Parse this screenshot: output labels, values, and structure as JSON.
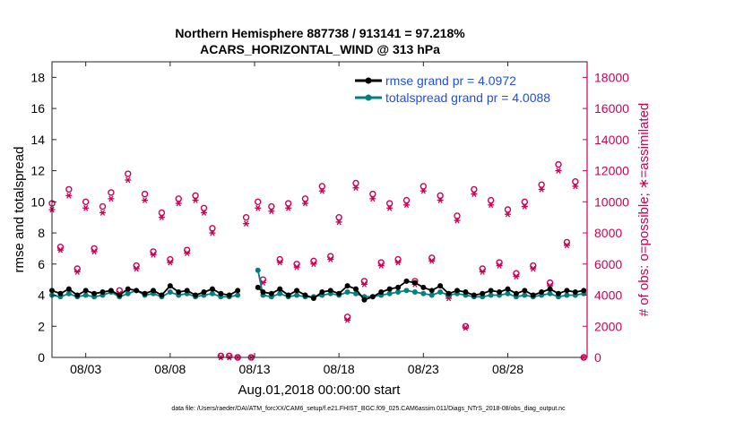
{
  "chart_data": {
    "type": "line",
    "title_line1": "Northern Hemisphere 887738 / 913141 = 97.218%",
    "title_line2": "ACARS_HORIZONTAL_WIND @ 313 hPa",
    "xlabel": "Aug.01,2018 00:00:00 start",
    "ylabel_left": "rmse and totalspread",
    "ylabel_right": "# of obs: o=possible; ∗=assimilated",
    "xlim": [
      1,
      32.7
    ],
    "ylim_left": [
      0,
      19
    ],
    "ylim_right": [
      0,
      19000
    ],
    "x_ticks": [
      3,
      8,
      13,
      18,
      23,
      28
    ],
    "x_tick_labels": [
      "08/03",
      "08/08",
      "08/13",
      "08/18",
      "08/23",
      "08/28"
    ],
    "y_ticks_left": [
      0,
      2,
      4,
      6,
      8,
      10,
      12,
      14,
      16,
      18
    ],
    "y_ticks_right": [
      0,
      2000,
      4000,
      6000,
      8000,
      10000,
      12000,
      14000,
      16000,
      18000
    ],
    "footnote": "data file: /Users/raeder/DAI/ATM_forcXX/CAM6_setup/f.e21.FHIST_BGC.f09_025.CAM6assim.011/Diags_NTrS_2018-08/obs_diag_output.nc",
    "colors": {
      "rmse": "#000000",
      "spread": "#008080",
      "obs": "#cc0055",
      "legend_text": "#1f4fe0"
    },
    "series": [
      {
        "name": "rmse grand pr = 4.0972",
        "x": [
          1.0,
          1.5,
          2.0,
          2.5,
          3.0,
          3.5,
          4.0,
          4.5,
          5.0,
          5.5,
          6.0,
          6.5,
          7.0,
          7.5,
          8.0,
          8.5,
          9.0,
          9.5,
          10.0,
          10.5,
          11.0,
          11.5,
          12.0,
          12.5,
          12.8,
          13.2,
          13.5,
          14.0,
          14.5,
          15.0,
          15.5,
          16.0,
          16.5,
          17.0,
          17.5,
          18.0,
          18.5,
          19.0,
          19.5,
          20.0,
          20.5,
          21.0,
          21.5,
          22.0,
          22.5,
          23.0,
          23.5,
          24.0,
          24.5,
          25.0,
          25.5,
          26.0,
          26.5,
          27.0,
          27.5,
          28.0,
          28.5,
          29.0,
          29.5,
          30.0,
          30.5,
          31.0,
          31.5,
          32.0,
          32.5
        ],
        "y": [
          4.3,
          4.1,
          4.4,
          4.0,
          4.3,
          4.1,
          4.2,
          4.3,
          4.0,
          4.4,
          4.3,
          4.1,
          4.3,
          4.0,
          4.6,
          4.2,
          4.3,
          4.0,
          4.2,
          4.4,
          4.1,
          4.0,
          4.3,
          null,
          null,
          4.5,
          4.2,
          4.1,
          4.4,
          4.0,
          4.3,
          4.0,
          3.8,
          4.2,
          4.3,
          4.1,
          4.6,
          4.4,
          3.7,
          3.9,
          4.2,
          4.4,
          4.5,
          4.9,
          4.8,
          4.5,
          4.3,
          4.6,
          4.1,
          4.3,
          4.2,
          4.0,
          4.1,
          4.3,
          4.2,
          4.4,
          4.1,
          4.3,
          4.0,
          4.2,
          4.4,
          4.1,
          4.3,
          4.2,
          4.3
        ]
      },
      {
        "name": "totalspread grand pr = 4.0088",
        "x": [
          1.0,
          1.5,
          2.0,
          2.5,
          3.0,
          3.5,
          4.0,
          4.5,
          5.0,
          5.5,
          6.0,
          6.5,
          7.0,
          7.5,
          8.0,
          8.5,
          9.0,
          9.5,
          10.0,
          10.5,
          11.0,
          11.5,
          12.0,
          12.5,
          12.8,
          13.2,
          13.5,
          14.0,
          14.5,
          15.0,
          15.5,
          16.0,
          16.5,
          17.0,
          17.5,
          18.0,
          18.5,
          19.0,
          19.5,
          20.0,
          20.5,
          21.0,
          21.5,
          22.0,
          22.5,
          23.0,
          23.5,
          24.0,
          24.5,
          25.0,
          25.5,
          26.0,
          26.5,
          27.0,
          27.5,
          28.0,
          28.5,
          29.0,
          29.5,
          30.0,
          30.5,
          31.0,
          31.5,
          32.0,
          32.5
        ],
        "y": [
          4.0,
          3.9,
          4.1,
          3.9,
          4.0,
          3.9,
          4.0,
          4.2,
          3.9,
          4.1,
          4.3,
          4.0,
          4.1,
          3.9,
          4.2,
          4.0,
          4.1,
          3.9,
          4.0,
          4.1,
          3.9,
          3.9,
          4.0,
          null,
          null,
          5.6,
          4.0,
          3.9,
          4.1,
          3.9,
          4.0,
          3.9,
          3.9,
          4.0,
          4.1,
          4.0,
          4.2,
          4.1,
          3.9,
          3.9,
          4.0,
          4.1,
          4.2,
          4.3,
          4.2,
          4.1,
          4.0,
          4.2,
          4.0,
          4.1,
          4.0,
          3.9,
          3.9,
          4.0,
          4.0,
          4.1,
          3.9,
          4.0,
          3.9,
          4.0,
          4.1,
          3.9,
          4.0,
          4.0,
          4.1
        ]
      }
    ],
    "obs_possible": {
      "x": [
        1.0,
        1.5,
        2.0,
        2.5,
        3.0,
        3.5,
        4.0,
        4.5,
        5.0,
        5.5,
        6.0,
        6.5,
        7.0,
        7.5,
        8.0,
        8.5,
        9.0,
        9.5,
        10.0,
        10.5,
        11.0,
        11.5,
        12.0,
        12.5,
        12.8,
        13.2,
        13.5,
        14.0,
        14.5,
        15.0,
        15.5,
        16.0,
        16.5,
        17.0,
        17.5,
        18.0,
        18.5,
        19.0,
        19.5,
        20.0,
        20.5,
        21.0,
        21.5,
        22.0,
        22.5,
        23.0,
        23.5,
        24.0,
        24.5,
        25.0,
        25.5,
        26.0,
        26.5,
        27.0,
        27.5,
        28.0,
        28.5,
        29.0,
        29.5,
        30.0,
        30.5,
        31.0,
        31.5,
        32.0,
        32.5
      ],
      "y": [
        9900,
        7100,
        10800,
        5700,
        10000,
        7000,
        9700,
        10600,
        4300,
        11800,
        5900,
        10500,
        6800,
        9300,
        6300,
        10200,
        6900,
        10400,
        9600,
        8300,
        100,
        100,
        0,
        9000,
        0,
        10000,
        5000,
        9700,
        6300,
        9900,
        6000,
        10200,
        6200,
        11000,
        6500,
        9000,
        2600,
        11200,
        4900,
        10500,
        6100,
        9900,
        6300,
        10100,
        4900,
        11000,
        6400,
        10400,
        4000,
        9100,
        2000,
        10800,
        5700,
        10100,
        6100,
        9500,
        5400,
        10000,
        5900,
        11100,
        4800,
        12400,
        7400,
        11300,
        0
      ]
    },
    "obs_assimilated": {
      "x": [
        1.0,
        1.5,
        2.0,
        2.5,
        3.0,
        3.5,
        4.0,
        4.5,
        5.0,
        5.5,
        6.0,
        6.5,
        7.0,
        7.5,
        8.0,
        8.5,
        9.0,
        9.5,
        10.0,
        10.5,
        11.0,
        11.5,
        12.0,
        12.5,
        12.8,
        13.2,
        13.5,
        14.0,
        14.5,
        15.0,
        15.5,
        16.0,
        16.5,
        17.0,
        17.5,
        18.0,
        18.5,
        19.0,
        19.5,
        20.0,
        20.5,
        21.0,
        21.5,
        22.0,
        22.5,
        23.0,
        23.5,
        24.0,
        24.5,
        25.0,
        25.5,
        26.0,
        26.5,
        27.0,
        27.5,
        28.0,
        28.5,
        29.0,
        29.5,
        30.0,
        30.5,
        31.0,
        31.5,
        32.0,
        32.5
      ],
      "y": [
        9500,
        6900,
        10400,
        5500,
        9600,
        6800,
        9300,
        10200,
        4100,
        11400,
        5700,
        10100,
        6600,
        9000,
        6100,
        9900,
        6700,
        10100,
        9300,
        8000,
        0,
        0,
        0,
        8600,
        0,
        9600,
        4800,
        9400,
        6100,
        9600,
        5800,
        9900,
        6000,
        10700,
        6300,
        8700,
        2400,
        10900,
        4700,
        10200,
        5900,
        9600,
        6100,
        9800,
        4700,
        10700,
        6200,
        10100,
        3800,
        8800,
        1900,
        10500,
        5500,
        9800,
        5900,
        9200,
        5200,
        9700,
        5700,
        10800,
        4600,
        12000,
        7200,
        11000,
        0
      ]
    }
  }
}
